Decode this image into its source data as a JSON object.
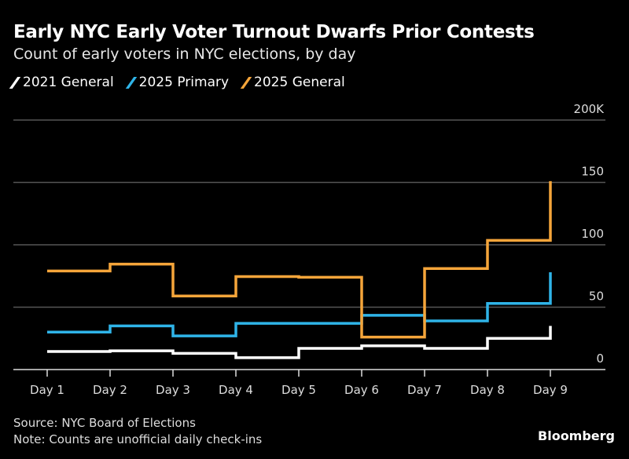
{
  "chart_data": {
    "type": "line",
    "step": true,
    "title": "Early NYC Early Voter Turnout Dwarfs Prior Contests",
    "subtitle": "Count of early voters in NYC elections, by day",
    "categories": [
      "Day 1",
      "Day 2",
      "Day 3",
      "Day 4",
      "Day 5",
      "Day 6",
      "Day 7",
      "Day 8",
      "Day 9"
    ],
    "yticks": [
      {
        "v": 0,
        "label": "0"
      },
      {
        "v": 50,
        "label": "50"
      },
      {
        "v": 100,
        "label": "100"
      },
      {
        "v": 150,
        "label": "150"
      },
      {
        "v": 200,
        "label": "200K"
      }
    ],
    "ylim": [
      0,
      200
    ],
    "grid": true,
    "legend_position": "top-left",
    "series": [
      {
        "name": "2021 General",
        "color": "#ffffff",
        "values": [
          14.5,
          15,
          13,
          9.5,
          17,
          19,
          17,
          25,
          35
        ]
      },
      {
        "name": "2025 Primary",
        "color": "#2fb4e8",
        "values": [
          30,
          35,
          27,
          37,
          37,
          43.5,
          39,
          53,
          78
        ]
      },
      {
        "name": "2025 General",
        "color": "#f5a53a",
        "values": [
          79,
          84.5,
          59,
          74.5,
          74,
          26,
          81,
          103.5,
          151
        ]
      }
    ]
  },
  "footer": {
    "source": "Source: NYC Board of Elections",
    "note": "Note: Counts are unofficial daily check-ins",
    "brand": "Bloomberg"
  }
}
